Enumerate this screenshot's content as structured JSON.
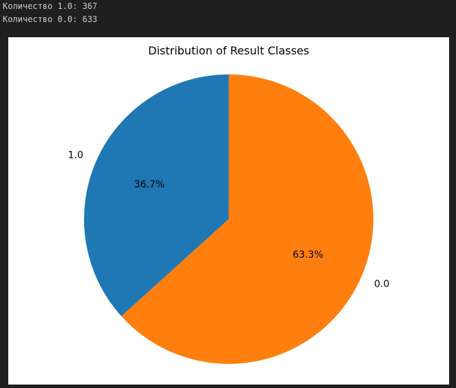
{
  "console": {
    "lines": [
      "Количество 1.0: 367",
      "Количество 0.0: 633"
    ]
  },
  "chart_data": {
    "type": "pie",
    "title": "Distribution of Result Classes",
    "labels": [
      "1.0",
      "0.0"
    ],
    "values": [
      367,
      633
    ],
    "percent_labels": [
      "36.7%",
      "63.3%"
    ],
    "colors": [
      "#1f77b4",
      "#ff7f0e"
    ],
    "start_angle": 90,
    "direction": "counterclockwise"
  }
}
